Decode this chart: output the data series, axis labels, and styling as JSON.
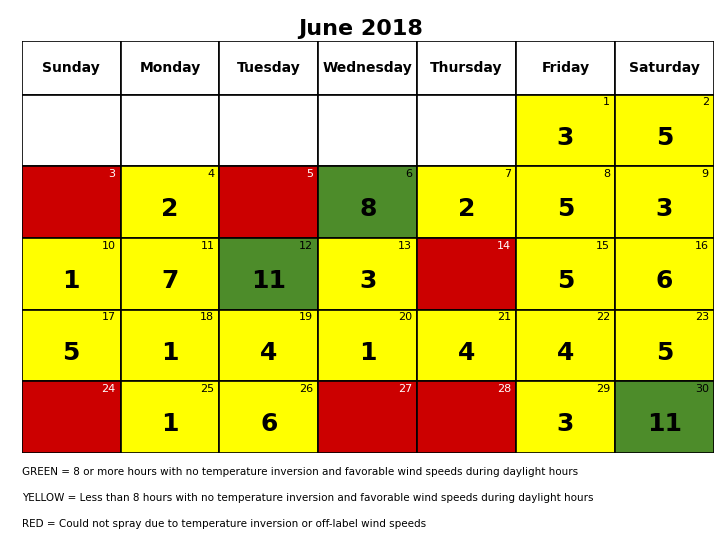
{
  "title": "June 2018",
  "title_fontsize": 16,
  "weekdays": [
    "Sunday",
    "Monday",
    "Tuesday",
    "Wednesday",
    "Thursday",
    "Friday",
    "Saturday"
  ],
  "calendar": [
    [
      {
        "day": null,
        "value": null,
        "color": "white"
      },
      {
        "day": null,
        "value": null,
        "color": "white"
      },
      {
        "day": null,
        "value": null,
        "color": "white"
      },
      {
        "day": null,
        "value": null,
        "color": "white"
      },
      {
        "day": null,
        "value": null,
        "color": "white"
      },
      {
        "day": 1,
        "value": 3,
        "color": "yellow"
      },
      {
        "day": 2,
        "value": 5,
        "color": "yellow"
      }
    ],
    [
      {
        "day": 3,
        "value": null,
        "color": "red"
      },
      {
        "day": 4,
        "value": 2,
        "color": "yellow"
      },
      {
        "day": 5,
        "value": null,
        "color": "red"
      },
      {
        "day": 6,
        "value": 8,
        "color": "green"
      },
      {
        "day": 7,
        "value": 2,
        "color": "yellow"
      },
      {
        "day": 8,
        "value": 5,
        "color": "yellow"
      },
      {
        "day": 9,
        "value": 3,
        "color": "yellow"
      }
    ],
    [
      {
        "day": 10,
        "value": 1,
        "color": "yellow"
      },
      {
        "day": 11,
        "value": 7,
        "color": "yellow"
      },
      {
        "day": 12,
        "value": 11,
        "color": "green"
      },
      {
        "day": 13,
        "value": 3,
        "color": "yellow"
      },
      {
        "day": 14,
        "value": null,
        "color": "red"
      },
      {
        "day": 15,
        "value": 5,
        "color": "yellow"
      },
      {
        "day": 16,
        "value": 6,
        "color": "yellow"
      }
    ],
    [
      {
        "day": 17,
        "value": 5,
        "color": "yellow"
      },
      {
        "day": 18,
        "value": 1,
        "color": "yellow"
      },
      {
        "day": 19,
        "value": 4,
        "color": "yellow"
      },
      {
        "day": 20,
        "value": 1,
        "color": "yellow"
      },
      {
        "day": 21,
        "value": 4,
        "color": "yellow"
      },
      {
        "day": 22,
        "value": 4,
        "color": "yellow"
      },
      {
        "day": 23,
        "value": 5,
        "color": "yellow"
      }
    ],
    [
      {
        "day": 24,
        "value": null,
        "color": "red"
      },
      {
        "day": 25,
        "value": 1,
        "color": "yellow"
      },
      {
        "day": 26,
        "value": 6,
        "color": "yellow"
      },
      {
        "day": 27,
        "value": null,
        "color": "red"
      },
      {
        "day": 28,
        "value": null,
        "color": "red"
      },
      {
        "day": 29,
        "value": 3,
        "color": "yellow"
      },
      {
        "day": 30,
        "value": 11,
        "color": "green"
      }
    ]
  ],
  "color_map": {
    "white": "#ffffff",
    "yellow": "#ffff00",
    "red": "#cc0000",
    "green": "#4d8c2a"
  },
  "legend_lines": [
    "GREEN = 8 or more hours with no temperature inversion and favorable wind speeds during daylight hours",
    "YELLOW = Less than 8 hours with no temperature inversion and favorable wind speeds during daylight hours",
    "RED = Could not spray due to temperature inversion or off-label wind speeds"
  ],
  "header_bg": "#ffffff",
  "border_color": "#000000",
  "text_color_dark": "#000000",
  "text_color_light": "#ffffff",
  "value_fontsize": 18,
  "day_fontsize": 8,
  "legend_fontsize": 7.5,
  "header_fontsize": 10
}
